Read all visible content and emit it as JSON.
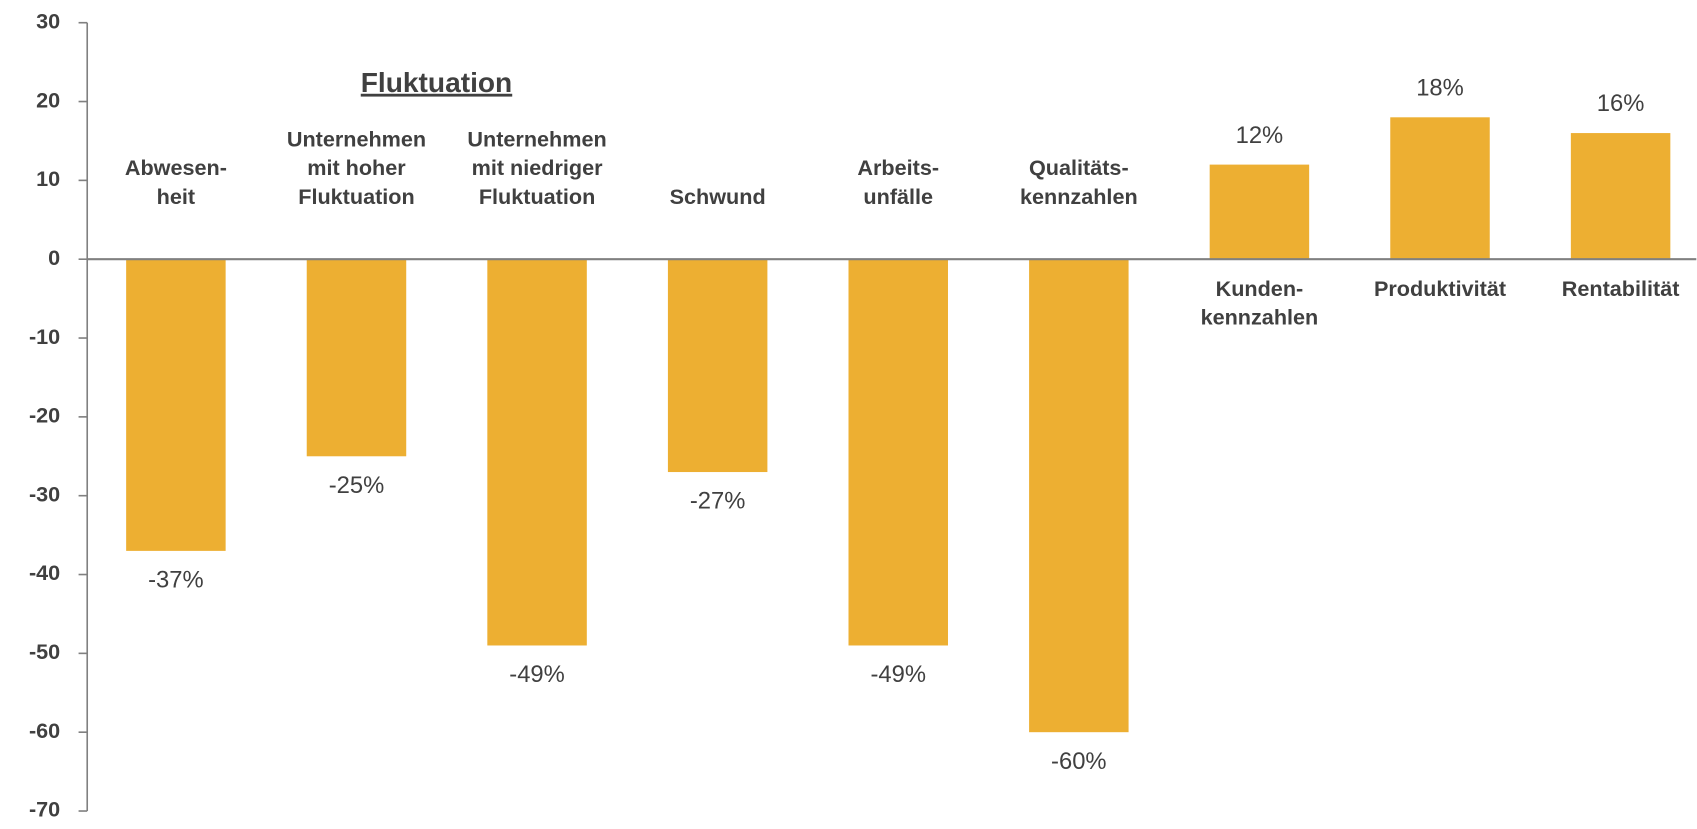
{
  "chart_data": {
    "type": "bar",
    "annotation": "Fluktuation",
    "categories": [
      "Abwesen-\nheit",
      "Unternehmen\nmit hoher\nFluktuation",
      "Unternehmen\nmit niedriger\nFluktuation",
      "Schwund",
      "Arbeits-\nunfälle",
      "Qualitäts-\nkennzahlen",
      "Kunden-\nkennzahlen",
      "Produktivität",
      "Rentabilität"
    ],
    "values": [
      -37,
      -25,
      -49,
      -27,
      -49,
      -60,
      12,
      18,
      16
    ],
    "value_labels": [
      "-37%",
      "-25%",
      "-49%",
      "-27%",
      "-49%",
      "-60%",
      "12%",
      "18%",
      "16%"
    ],
    "color": "#EDAF32",
    "ylim": [
      -70,
      30
    ],
    "yticks": [
      -70,
      -60,
      -50,
      -40,
      -30,
      -20,
      -10,
      0,
      10,
      20,
      30
    ],
    "grid": false
  }
}
